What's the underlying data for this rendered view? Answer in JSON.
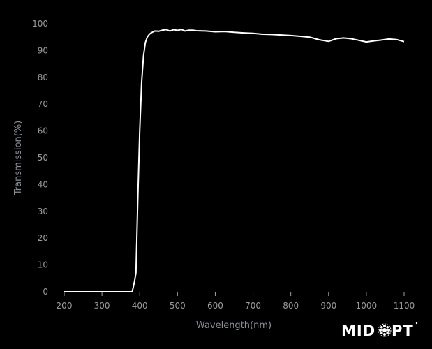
{
  "chart_data": {
    "type": "line",
    "title": "",
    "xlabel": "Wavelength(nm)",
    "ylabel": "Transmission(%)",
    "xlim": [
      200,
      1100
    ],
    "ylim": [
      0,
      100
    ],
    "xticks": [
      200,
      300,
      400,
      500,
      600,
      700,
      800,
      900,
      1000,
      1100
    ],
    "yticks": [
      0,
      10,
      20,
      30,
      40,
      50,
      60,
      70,
      80,
      90,
      100
    ],
    "grid": false,
    "line_color": "#ffffff",
    "series": [
      {
        "x": [
          200,
          300,
          380,
          385,
          390,
          395,
          400,
          405,
          410,
          415,
          420,
          425,
          430,
          440,
          450,
          460,
          470,
          480,
          490,
          500,
          510,
          520,
          530,
          540,
          550,
          575,
          600,
          625,
          650,
          675,
          700,
          725,
          750,
          775,
          800,
          825,
          850,
          875,
          900,
          920,
          940,
          960,
          980,
          1000,
          1020,
          1040,
          1060,
          1080,
          1100
        ],
        "y": [
          0,
          0,
          0,
          3,
          7,
          35,
          60,
          78,
          88,
          93,
          95,
          96,
          96.6,
          97.3,
          97.2,
          97.6,
          97.8,
          97.3,
          97.8,
          97.5,
          97.9,
          97.3,
          97.6,
          97.6,
          97.4,
          97.3,
          97.0,
          97.1,
          96.8,
          96.6,
          96.4,
          96.1,
          96.0,
          95.8,
          95.6,
          95.3,
          95.0,
          94.0,
          93.4,
          94.4,
          94.7,
          94.4,
          93.8,
          93.2,
          93.6,
          93.9,
          94.3,
          94.1,
          93.3
        ]
      }
    ]
  },
  "logo": {
    "text": "MIDOPT"
  }
}
